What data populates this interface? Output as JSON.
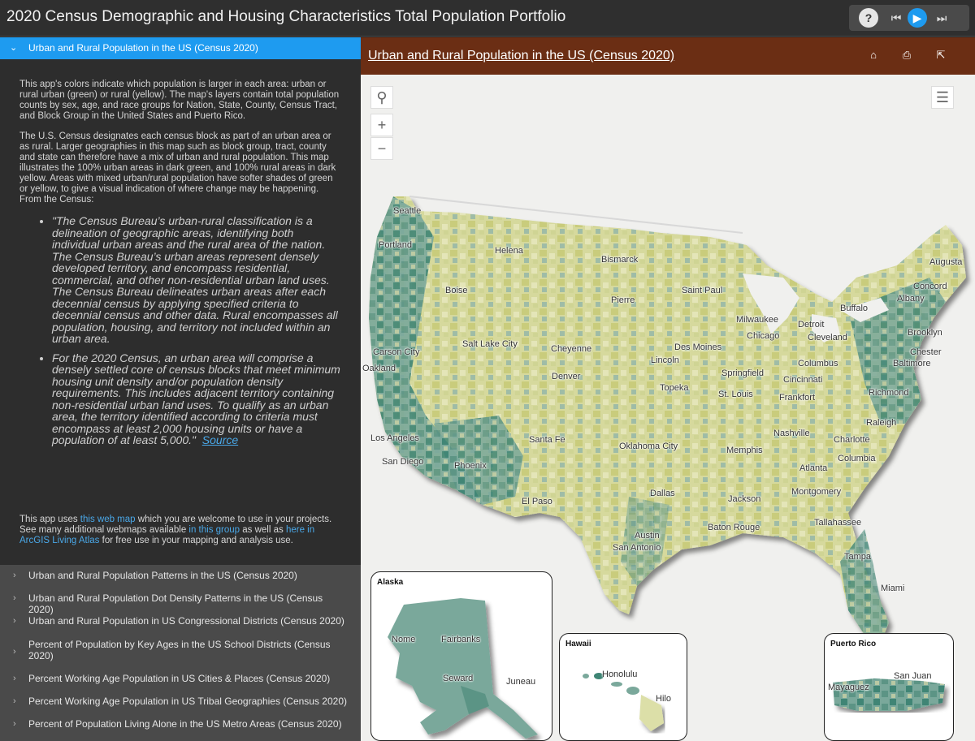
{
  "app": {
    "title": "2020 Census Demographic and Housing Characteristics Total Population Portfolio"
  },
  "nav": {
    "help": "?",
    "prev": "⏮",
    "play": "▶",
    "next": "⏭"
  },
  "sidebar": {
    "active_tab": "Urban and Rural Population in the US (Census 2020)",
    "paragraphs": [
      "This app's colors indicate which population is larger in each area: urban or rural urban (green) or rural (yellow). The map's layers contain total population counts by sex, age, and race groups for Nation, State, County, Census Tract, and Block Group in the United States and Puerto Rico.",
      "The U.S. Census designates each census block as part of an urban area or as rural. Larger geographies in this map such as block group, tract, county and state can therefore have a mix of urban and rural population. This map illustrates the 100% urban areas in dark green, and 100% rural areas in dark yellow. Areas with mixed urban/rural population have softer shades of green or yellow, to give a visual indication of where change may be happening. From the Census:"
    ],
    "quotes": [
      "\"The Census Bureau’s urban-rural classification is a delineation of geographic areas, identifying both individual urban areas and the rural area of the nation. The Census Bureau’s urban areas represent densely developed territory, and encompass residential, commercial, and other non-residential urban land uses. The Census Bureau delineates urban areas after each decennial census by applying specified criteria to decennial census and other data. Rural encompasses all population, housing, and territory not included within an urban area.",
      "For the 2020 Census, an urban area will comprise a densely settled core of census blocks that meet minimum housing unit density and/or population density requirements. This includes adjacent territory containing non-residential urban land uses. To qualify as an urban area, the territory identified according to criteria must encompass at least 2,000 housing units or have a population of at least 5,000.\""
    ],
    "source_link": "Source",
    "footer": {
      "t1": "This app uses ",
      "link1": "this web map",
      "t2": " which you are welcome to use in your projects. See many additional webmaps available ",
      "link2": "in this group",
      "t3": " as well as ",
      "link3": "here in ArcGIS Living Atlas",
      "t4": " for free use in your mapping and analysis use."
    },
    "tabs": [
      "Urban and Rural Population Patterns in the US (Census 2020)",
      "Urban and Rural Population Dot Density Patterns in the US (Census 2020)",
      "Urban and Rural Population in US Congressional Districts (Census 2020)",
      "Percent of Population by Key Ages in the US School Districts (Census 2020)",
      "Percent Working Age Population in US Cities & Places (Census 2020)",
      "Percent Working Age Population in US Tribal Geographies (Census 2020)",
      "Percent of Population Living Alone in the US Metro Areas (Census 2020)"
    ]
  },
  "map_panel": {
    "title": "Urban and Rural Population in the US (Census 2020)",
    "home_icon": "home-icon",
    "print_icon": "print-icon",
    "share_icon": "share-icon",
    "zoom_in": "+",
    "zoom_out": "−",
    "colors": {
      "header": "#6b2e14",
      "urban_dark": "#3f8575",
      "urban_mid": "#7aa89b",
      "mixed": "#b9c9a4",
      "rural_light": "#dcdfa8",
      "rural_dark": "#c9cc7c"
    },
    "cities": [
      "Seattle",
      "Portland",
      "Helena",
      "Bismarck",
      "Augusta",
      "Boise",
      "Saint Paul",
      "Pierre",
      "Concord",
      "Albany",
      "Buffalo",
      "Milwaukee",
      "Detroit",
      "Chicago",
      "Cleveland",
      "Brooklyn",
      "Salt Lake City",
      "Cheyenne",
      "Des Moines",
      "Lincoln",
      "Carson City",
      "Oakland",
      "Chester",
      "Baltimore",
      "Columbus",
      "Springfield",
      "Cincinnati",
      "Denver",
      "Topeka",
      "St. Louis",
      "Frankfort",
      "Richmond",
      "Nashville",
      "Raleigh",
      "Los Angeles",
      "Santa Fe",
      "Oklahoma City",
      "Memphis",
      "Charlotte",
      "Columbia",
      "San Diego",
      "Phoenix",
      "Atlanta",
      "El Paso",
      "Dallas",
      "Montgomery",
      "Jackson",
      "Tallahassee",
      "Baton Rouge",
      "Austin",
      "San Antonio",
      "Tampa",
      "Miami"
    ],
    "insets": {
      "alaska": {
        "title": "Alaska",
        "cities": [
          "Nome",
          "Fairbanks",
          "Seward",
          "Juneau"
        ]
      },
      "hawaii": {
        "title": "Hawaii",
        "cities": [
          "Honolulu",
          "Hilo"
        ]
      },
      "puerto_rico": {
        "title": "Puerto Rico",
        "cities": [
          "San Juan",
          "Mayaguez"
        ]
      }
    }
  }
}
